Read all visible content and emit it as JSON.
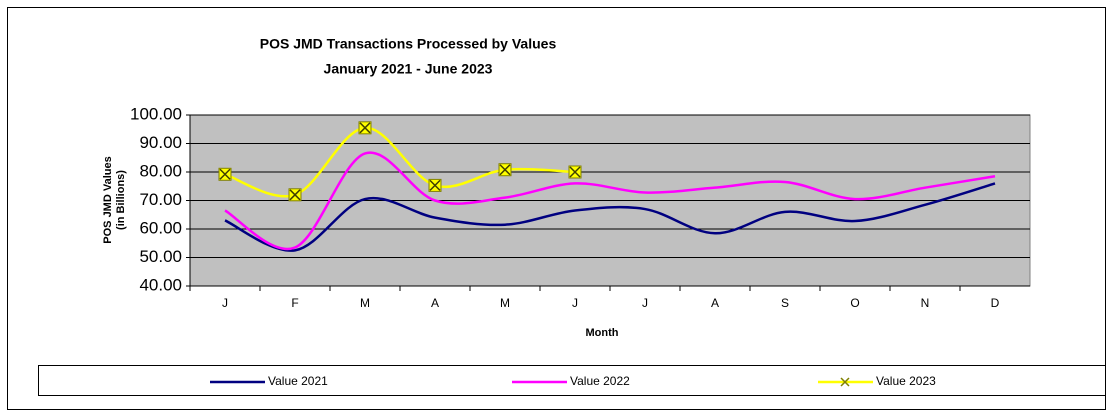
{
  "chart_data": {
    "type": "line",
    "title": "POS JMD Transactions Processed by Values",
    "subtitle": "January 2021 - June 2023",
    "xlabel": "Month",
    "ylabel": [
      "POS JMD Values",
      "(in Billions)"
    ],
    "categories": [
      "J",
      "F",
      "M",
      "A",
      "M",
      "J",
      "J",
      "A",
      "S",
      "O",
      "N",
      "D"
    ],
    "ylim": [
      40,
      100
    ],
    "yticks": [
      {
        "value": 40,
        "label": "40.00"
      },
      {
        "value": 50,
        "label": "50.00"
      },
      {
        "value": 60,
        "label": "60.00"
      },
      {
        "value": 70,
        "label": "70.00"
      },
      {
        "value": 80,
        "label": "80.00"
      },
      {
        "value": 90,
        "label": "90.00"
      },
      {
        "value": 100,
        "label": "100.00"
      }
    ],
    "grid": true,
    "series": [
      {
        "name": "Value 2021",
        "color": "#000080",
        "marker": false,
        "values": [
          63,
          52.5,
          70.5,
          64,
          61.5,
          66.5,
          67,
          58.5,
          66,
          62.8,
          68.5,
          76
        ]
      },
      {
        "name": "Value 2022",
        "color": "#ff00ff",
        "marker": false,
        "values": [
          66.5,
          53.5,
          86.5,
          70,
          71,
          76,
          72.8,
          74.5,
          76.5,
          70.5,
          74.5,
          78.5
        ]
      },
      {
        "name": "Value 2023",
        "color": "#ffff00",
        "marker": true,
        "values": [
          79.2,
          72,
          95.5,
          75.3,
          80.8,
          80,
          null,
          null,
          null,
          null,
          null,
          null
        ]
      }
    ]
  }
}
